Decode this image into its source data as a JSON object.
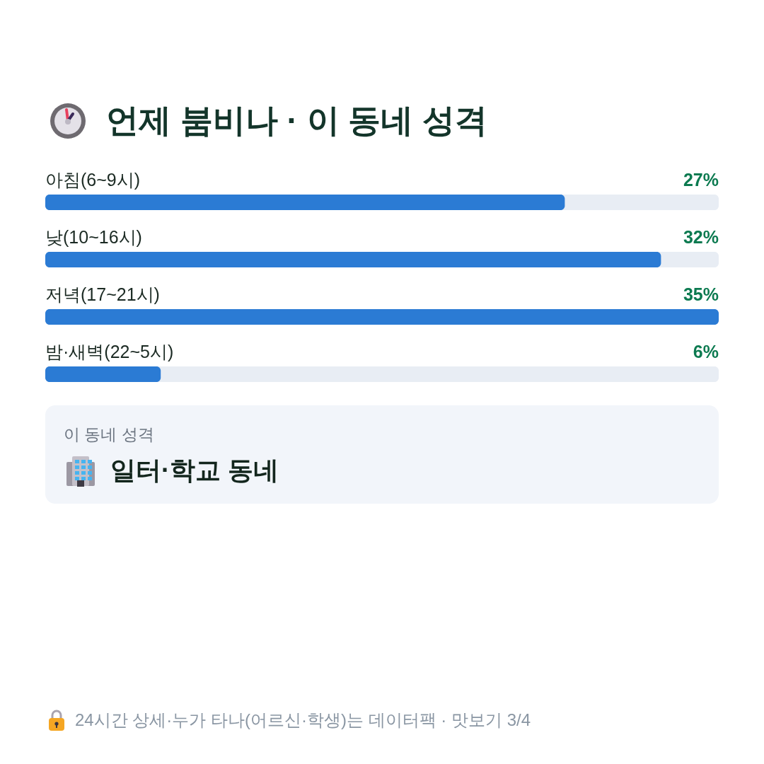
{
  "chart_data": {
    "type": "bar",
    "orientation": "horizontal",
    "title": "언제 붐비나 · 이 동네 성격",
    "categories": [
      "아침(6~9시)",
      "낮(10~16시)",
      "저녁(17~21시)",
      "밤·새벽(22~5시)"
    ],
    "values": [
      27,
      32,
      35,
      6
    ],
    "value_labels": [
      "27%",
      "32%",
      "35%",
      "6%"
    ],
    "color": "#2b7bd4",
    "annotations": [
      "이 동네 성격",
      "일터·학교 동네",
      "24시간 상세·누가 타나(어르신·학생)는 데이터팩 · 맛보기 3/4"
    ]
  }
}
